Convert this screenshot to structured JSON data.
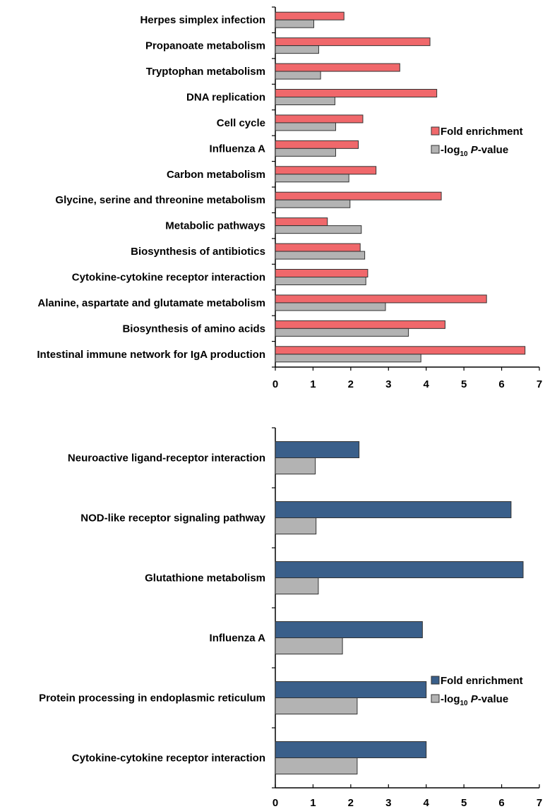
{
  "chart_data": [
    {
      "type": "bar",
      "orientation": "horizontal",
      "categories": [
        "Herpes simplex infection",
        "Propanoate metabolism",
        "Tryptophan metabolism",
        "DNA replication",
        "Cell cycle",
        "Influenza A",
        "Carbon metabolism",
        "Glycine, serine and threonine metabolism",
        "Metabolic pathways",
        "Biosynthesis of antibiotics",
        "Cytokine-cytokine receptor interaction",
        "Alanine, aspartate and glutamate metabolism",
        "Biosynthesis of amino acids",
        "Intestinal immune network for IgA production"
      ],
      "series": [
        {
          "name": "Fold enrichment",
          "color": "#f0686b",
          "values": [
            1.82,
            4.1,
            3.3,
            4.28,
            2.32,
            2.2,
            2.67,
            4.4,
            1.38,
            2.25,
            2.45,
            5.6,
            4.5,
            6.62
          ]
        },
        {
          "name": "-log10 P-value",
          "color": "#b3b3b3",
          "values": [
            1.02,
            1.15,
            1.2,
            1.58,
            1.6,
            1.6,
            1.95,
            1.98,
            2.28,
            2.37,
            2.4,
            2.92,
            3.53,
            3.86
          ]
        }
      ],
      "xlim": [
        0,
        7
      ],
      "xticks": [
        "0",
        "1",
        "2",
        "3",
        "4",
        "5",
        "6",
        "7"
      ],
      "legend_position": "right"
    },
    {
      "type": "bar",
      "orientation": "horizontal",
      "categories": [
        "Neuroactive ligand-receptor interaction",
        "NOD-like receptor signaling pathway",
        "Glutathione metabolism",
        "Influenza A",
        "Protein processing in endoplasmic reticulum",
        "Cytokine-cytokine receptor interaction"
      ],
      "series": [
        {
          "name": "Fold enrichment",
          "color": "#3a5f8a",
          "values": [
            2.22,
            6.25,
            6.57,
            3.9,
            4.0,
            4.0
          ]
        },
        {
          "name": "-log10 P-value",
          "color": "#b3b3b3",
          "values": [
            1.06,
            1.08,
            1.14,
            1.78,
            2.17,
            2.17
          ]
        }
      ],
      "xlim": [
        0,
        7
      ],
      "xticks": [
        "0",
        "1",
        "2",
        "3",
        "4",
        "5",
        "6",
        "7"
      ],
      "legend_position": "right"
    }
  ],
  "legends": [
    {
      "fold": "Fold enrichment",
      "log_prefix": "-log",
      "log_sub": "10",
      "log_p": "P",
      "log_suffix": "-value"
    },
    {
      "fold": "Fold enrichment",
      "log_prefix": "-log",
      "log_sub": "10",
      "log_p": "P",
      "log_suffix": "-value"
    }
  ]
}
